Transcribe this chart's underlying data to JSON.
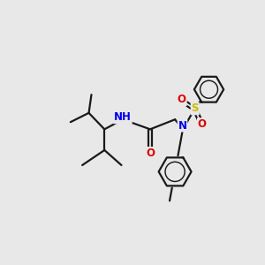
{
  "bg_color": "#e8e8e8",
  "bond_color": "#1a1a1a",
  "bond_width": 1.6,
  "atom_colors": {
    "N": "#0000ee",
    "NH": "#0000ee",
    "H": "#009999",
    "O": "#dd0000",
    "S": "#ccbb00"
  },
  "font_size": 8.5,
  "figsize": [
    3.0,
    3.0
  ],
  "dpi": 100,
  "xlim": [
    0,
    10
  ],
  "ylim": [
    0,
    10
  ]
}
